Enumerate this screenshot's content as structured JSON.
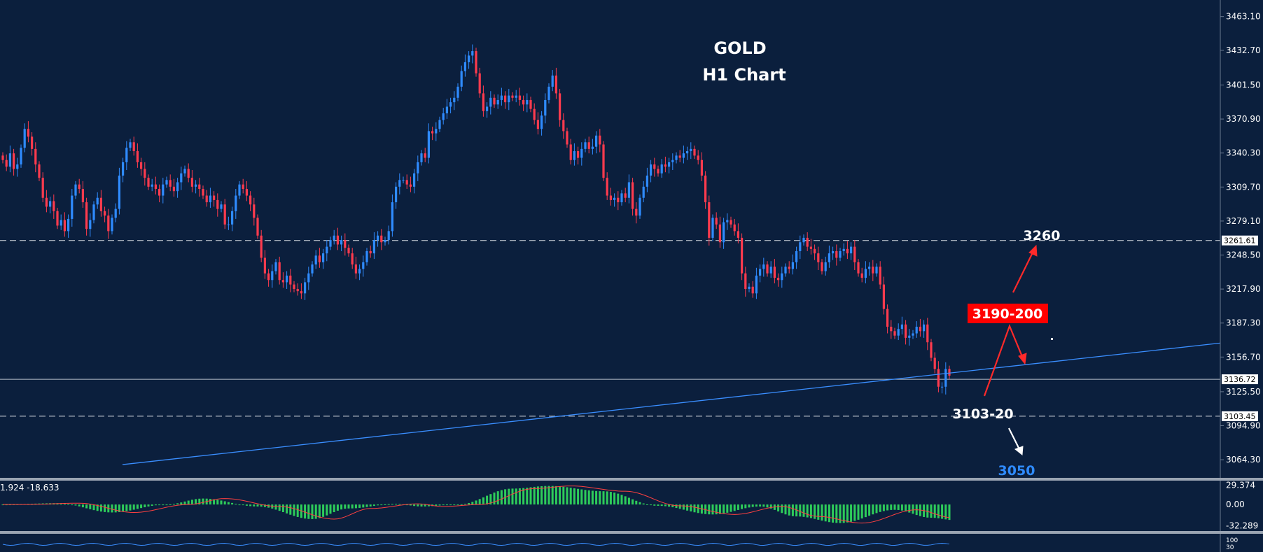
{
  "chart_data": {
    "type": "candlestick",
    "title": "GOLD",
    "subtitle": "H1 Chart",
    "ylim": [
      3048.0,
      3478.0
    ],
    "price_ticks": [
      "3463.10",
      "3432.70",
      "3401.50",
      "3370.90",
      "3340.30",
      "3309.70",
      "3279.10",
      "3248.50",
      "3217.90",
      "3187.30",
      "3156.70",
      "3125.50",
      "3094.90",
      "3064.30"
    ],
    "price_tick_values": [
      3463.1,
      3432.7,
      3401.5,
      3370.9,
      3340.3,
      3309.7,
      3279.1,
      3248.5,
      3217.9,
      3187.3,
      3156.7,
      3125.5,
      3094.9,
      3064.3
    ],
    "horizontal_levels": [
      {
        "label": "3261.61",
        "value": 3261.61,
        "style": "dashed"
      },
      {
        "label": "3136.72",
        "value": 3136.72,
        "style": "solid"
      },
      {
        "label": "3103.45",
        "value": 3103.45,
        "style": "dashed"
      }
    ],
    "trendline": {
      "start": [
        0,
        3048.0
      ],
      "end": [
        262,
        3143.0
      ]
    },
    "annotations": [
      {
        "text": "3260",
        "color": "#ffffff"
      },
      {
        "text": "3190-200",
        "color": "#ffffff",
        "background": "#ff0000"
      },
      {
        "text": "3103-20",
        "color": "#ffffff"
      },
      {
        "text": "3050",
        "color": "#2f8bff"
      }
    ],
    "closes": [
      3334,
      3328,
      3340,
      3326,
      3330,
      3345,
      3362,
      3355,
      3344,
      3330,
      3318,
      3300,
      3292,
      3297,
      3288,
      3275,
      3280,
      3270,
      3281,
      3302,
      3312,
      3308,
      3296,
      3272,
      3280,
      3294,
      3300,
      3288,
      3284,
      3270,
      3282,
      3290,
      3320,
      3332,
      3345,
      3350,
      3342,
      3332,
      3326,
      3318,
      3310,
      3312,
      3308,
      3302,
      3312,
      3316,
      3310,
      3306,
      3314,
      3322,
      3326,
      3318,
      3310,
      3312,
      3308,
      3302,
      3296,
      3302,
      3298,
      3290,
      3294,
      3276,
      3276,
      3288,
      3302,
      3312,
      3308,
      3302,
      3294,
      3282,
      3266,
      3246,
      3232,
      3226,
      3234,
      3242,
      3226,
      3224,
      3230,
      3222,
      3218,
      3216,
      3214,
      3224,
      3232,
      3240,
      3248,
      3242,
      3250,
      3256,
      3262,
      3266,
      3258,
      3262,
      3255,
      3250,
      3240,
      3232,
      3236,
      3242,
      3252,
      3250,
      3262,
      3266,
      3260,
      3262,
      3270,
      3296,
      3310,
      3316,
      3316,
      3312,
      3310,
      3322,
      3332,
      3340,
      3336,
      3360,
      3358,
      3362,
      3370,
      3376,
      3382,
      3386,
      3390,
      3400,
      3414,
      3422,
      3428,
      3432,
      3412,
      3394,
      3378,
      3382,
      3390,
      3384,
      3388,
      3392,
      3386,
      3392,
      3390,
      3392,
      3388,
      3384,
      3388,
      3380,
      3370,
      3362,
      3374,
      3388,
      3400,
      3410,
      3394,
      3370,
      3360,
      3348,
      3334,
      3342,
      3336,
      3344,
      3350,
      3344,
      3346,
      3356,
      3348,
      3318,
      3302,
      3298,
      3300,
      3296,
      3304,
      3300,
      3314,
      3290,
      3284,
      3300,
      3310,
      3320,
      3330,
      3326,
      3322,
      3330,
      3328,
      3332,
      3334,
      3338,
      3336,
      3340,
      3342,
      3344,
      3338,
      3334,
      3320,
      3296,
      3264,
      3282,
      3276,
      3260,
      3278,
      3280,
      3276,
      3270,
      3264,
      3232,
      3218,
      3220,
      3214,
      3230,
      3236,
      3240,
      3232,
      3238,
      3228,
      3226,
      3232,
      3238,
      3236,
      3242,
      3252,
      3260,
      3264,
      3256,
      3254,
      3250,
      3242,
      3234,
      3242,
      3250,
      3252,
      3246,
      3252,
      3254,
      3250,
      3256,
      3242,
      3232,
      3228,
      3236,
      3238,
      3232,
      3238,
      3222,
      3200,
      3184,
      3180,
      3176,
      3182,
      3186,
      3174,
      3176,
      3178,
      3184,
      3180,
      3186,
      3170,
      3156,
      3146,
      3130,
      3130,
      3146,
      3140
    ],
    "indicator_values_label": "1.924 -18.633",
    "indicator_ticks": [
      "29.374",
      "0.00",
      "-32.289"
    ],
    "indicator_tick_values": [
      29.374,
      0.0,
      -32.289
    ],
    "indicator_histogram_knots": [
      [
        0,
        0
      ],
      [
        15,
        2
      ],
      [
        30,
        -12
      ],
      [
        45,
        0
      ],
      [
        55,
        9
      ],
      [
        70,
        -3
      ],
      [
        85,
        -22
      ],
      [
        95,
        -6
      ],
      [
        108,
        1
      ],
      [
        115,
        -3
      ],
      [
        125,
        0
      ],
      [
        140,
        24
      ],
      [
        150,
        28
      ],
      [
        165,
        20
      ],
      [
        180,
        -2
      ],
      [
        195,
        -15
      ],
      [
        208,
        -3
      ],
      [
        218,
        -18
      ],
      [
        230,
        -28
      ],
      [
        245,
        -8
      ],
      [
        255,
        -20
      ],
      [
        262,
        -24
      ]
    ],
    "sub_indicator_ticks": [
      "100",
      "30"
    ]
  }
}
